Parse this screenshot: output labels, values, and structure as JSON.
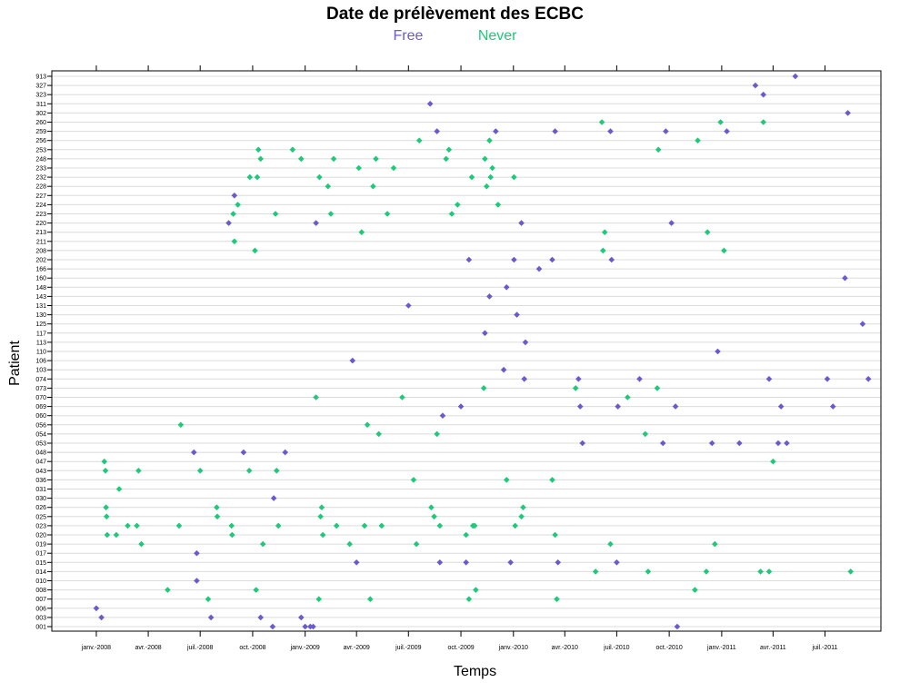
{
  "chart_data": {
    "type": "scatter",
    "title": "Date de prélèvement des ECBC",
    "xlabel": "Temps",
    "ylabel": "Patient",
    "legend_position": "top",
    "x_ticks": [
      "2008-01-01",
      "2008-04-01",
      "2008-07-01",
      "2008-10-01",
      "2009-01-01",
      "2009-04-01",
      "2009-07-01",
      "2009-10-01",
      "2010-01-01",
      "2010-04-01",
      "2010-07-01",
      "2010-10-01",
      "2011-01-01",
      "2011-04-01",
      "2011-07-01"
    ],
    "x_tick_labels": [
      "janv.-2008",
      "avr.-2008",
      "juil.-2008",
      "oct.-2008",
      "janv.-2009",
      "avr.-2009",
      "juil.-2009",
      "oct.-2009",
      "janv.-2010",
      "avr.-2010",
      "juil.-2010",
      "oct.-2010",
      "janv.-2011",
      "avr.-2011",
      "juil.-2011"
    ],
    "xlim": [
      "2007-10-15",
      "2011-10-07"
    ],
    "categories": [
      "001",
      "003",
      "006",
      "007",
      "008",
      "010",
      "014",
      "015",
      "017",
      "019",
      "020",
      "023",
      "025",
      "026",
      "030",
      "031",
      "036",
      "043",
      "047",
      "048",
      "053",
      "054",
      "056",
      "060",
      "069",
      "070",
      "073",
      "074",
      "103",
      "106",
      "110",
      "113",
      "117",
      "125",
      "130",
      "131",
      "143",
      "148",
      "160",
      "166",
      "202",
      "208",
      "211",
      "213",
      "220",
      "223",
      "224",
      "227",
      "228",
      "232",
      "233",
      "248",
      "253",
      "256",
      "259",
      "260",
      "302",
      "311",
      "323",
      "327",
      "913"
    ],
    "grid": true,
    "series": [
      {
        "name": "Free",
        "color": "#6a5acd",
        "points": [
          [
            "2008-01-01",
            "006"
          ],
          [
            "2008-01-10",
            "003"
          ],
          [
            "2008-06-20",
            "048"
          ],
          [
            "2008-06-25",
            "017"
          ],
          [
            "2008-06-25",
            "010"
          ],
          [
            "2008-07-20",
            "003"
          ],
          [
            "2008-08-20",
            "220"
          ],
          [
            "2008-08-30",
            "227"
          ],
          [
            "2008-09-15",
            "048"
          ],
          [
            "2008-10-15",
            "003"
          ],
          [
            "2008-11-05",
            "001"
          ],
          [
            "2008-11-07",
            "030"
          ],
          [
            "2008-11-27",
            "048"
          ],
          [
            "2008-12-25",
            "003"
          ],
          [
            "2009-01-01",
            "001"
          ],
          [
            "2009-01-10",
            "001"
          ],
          [
            "2009-01-15",
            "001"
          ],
          [
            "2009-01-20",
            "220"
          ],
          [
            "2009-03-25",
            "106"
          ],
          [
            "2009-04-01",
            "015"
          ],
          [
            "2009-07-01",
            "131"
          ],
          [
            "2009-08-08",
            "311"
          ],
          [
            "2009-08-20",
            "259"
          ],
          [
            "2009-08-25",
            "015"
          ],
          [
            "2009-08-30",
            "060"
          ],
          [
            "2009-10-01",
            "069"
          ],
          [
            "2009-10-10",
            "015"
          ],
          [
            "2009-10-15",
            "202"
          ],
          [
            "2009-11-12",
            "117"
          ],
          [
            "2009-11-20",
            "143"
          ],
          [
            "2009-12-01",
            "259"
          ],
          [
            "2009-12-15",
            "103"
          ],
          [
            "2009-12-20",
            "148"
          ],
          [
            "2009-12-27",
            "015"
          ],
          [
            "2010-01-02",
            "202"
          ],
          [
            "2010-01-07",
            "130"
          ],
          [
            "2010-01-15",
            "220"
          ],
          [
            "2010-01-20",
            "074"
          ],
          [
            "2010-01-22",
            "113"
          ],
          [
            "2010-02-15",
            "166"
          ],
          [
            "2010-03-10",
            "202"
          ],
          [
            "2010-03-15",
            "259"
          ],
          [
            "2010-03-20",
            "015"
          ],
          [
            "2010-04-25",
            "074"
          ],
          [
            "2010-04-28",
            "069"
          ],
          [
            "2010-05-02",
            "053"
          ],
          [
            "2010-06-20",
            "259"
          ],
          [
            "2010-06-22",
            "202"
          ],
          [
            "2010-07-01",
            "015"
          ],
          [
            "2010-07-03",
            "069"
          ],
          [
            "2010-08-10",
            "074"
          ],
          [
            "2010-09-20",
            "053"
          ],
          [
            "2010-09-25",
            "259"
          ],
          [
            "2010-10-05",
            "220"
          ],
          [
            "2010-10-12",
            "069"
          ],
          [
            "2010-10-15",
            "001"
          ],
          [
            "2010-12-15",
            "053"
          ],
          [
            "2010-12-25",
            "110"
          ],
          [
            "2011-01-10",
            "259"
          ],
          [
            "2011-02-01",
            "053"
          ],
          [
            "2011-03-01",
            "327"
          ],
          [
            "2011-03-15",
            "323"
          ],
          [
            "2011-03-25",
            "074"
          ],
          [
            "2011-04-10",
            "053"
          ],
          [
            "2011-04-15",
            "069"
          ],
          [
            "2011-04-25",
            "053"
          ],
          [
            "2011-05-10",
            "913"
          ],
          [
            "2011-07-05",
            "074"
          ],
          [
            "2011-07-15",
            "069"
          ],
          [
            "2011-08-05",
            "160"
          ],
          [
            "2011-08-10",
            "302"
          ],
          [
            "2011-09-05",
            "125"
          ],
          [
            "2011-09-15",
            "074"
          ]
        ]
      },
      {
        "name": "Never",
        "color": "#1fc97a",
        "points": [
          [
            "2008-01-15",
            "047"
          ],
          [
            "2008-01-17",
            "043"
          ],
          [
            "2008-01-18",
            "026"
          ],
          [
            "2008-01-19",
            "025"
          ],
          [
            "2008-01-20",
            "020"
          ],
          [
            "2008-02-05",
            "020"
          ],
          [
            "2008-02-10",
            "031"
          ],
          [
            "2008-02-25",
            "023"
          ],
          [
            "2008-03-12",
            "023"
          ],
          [
            "2008-03-15",
            "043"
          ],
          [
            "2008-03-20",
            "019"
          ],
          [
            "2008-05-05",
            "008"
          ],
          [
            "2008-05-25",
            "023"
          ],
          [
            "2008-05-28",
            "056"
          ],
          [
            "2008-07-01",
            "043"
          ],
          [
            "2008-07-15",
            "007"
          ],
          [
            "2008-07-30",
            "026"
          ],
          [
            "2008-07-31",
            "025"
          ],
          [
            "2008-08-25",
            "023"
          ],
          [
            "2008-08-26",
            "020"
          ],
          [
            "2008-08-28",
            "223"
          ],
          [
            "2008-08-30",
            "211"
          ],
          [
            "2008-09-05",
            "224"
          ],
          [
            "2008-09-25",
            "043"
          ],
          [
            "2008-09-26",
            "232"
          ],
          [
            "2008-10-05",
            "208"
          ],
          [
            "2008-10-07",
            "008"
          ],
          [
            "2008-10-09",
            "232"
          ],
          [
            "2008-10-11",
            "253"
          ],
          [
            "2008-10-15",
            "248"
          ],
          [
            "2008-10-19",
            "019"
          ],
          [
            "2008-11-10",
            "223"
          ],
          [
            "2008-11-12",
            "043"
          ],
          [
            "2008-11-15",
            "023"
          ],
          [
            "2008-12-10",
            "253"
          ],
          [
            "2008-12-25",
            "248"
          ],
          [
            "2009-01-20",
            "070"
          ],
          [
            "2009-01-25",
            "007"
          ],
          [
            "2009-01-26",
            "232"
          ],
          [
            "2009-01-28",
            "025"
          ],
          [
            "2009-01-30",
            "026"
          ],
          [
            "2009-02-01",
            "020"
          ],
          [
            "2009-02-10",
            "228"
          ],
          [
            "2009-02-15",
            "223"
          ],
          [
            "2009-02-20",
            "248"
          ],
          [
            "2009-02-25",
            "023"
          ],
          [
            "2009-03-20",
            "019"
          ],
          [
            "2009-04-05",
            "233"
          ],
          [
            "2009-04-10",
            "213"
          ],
          [
            "2009-04-15",
            "023"
          ],
          [
            "2009-04-20",
            "056"
          ],
          [
            "2009-04-25",
            "007"
          ],
          [
            "2009-04-30",
            "228"
          ],
          [
            "2009-05-05",
            "248"
          ],
          [
            "2009-05-10",
            "054"
          ],
          [
            "2009-05-15",
            "023"
          ],
          [
            "2009-05-25",
            "223"
          ],
          [
            "2009-06-05",
            "233"
          ],
          [
            "2009-06-20",
            "070"
          ],
          [
            "2009-07-10",
            "036"
          ],
          [
            "2009-07-15",
            "019"
          ],
          [
            "2009-07-20",
            "256"
          ],
          [
            "2009-08-10",
            "026"
          ],
          [
            "2009-08-15",
            "025"
          ],
          [
            "2009-08-20",
            "054"
          ],
          [
            "2009-08-25",
            "023"
          ],
          [
            "2009-09-05",
            "248"
          ],
          [
            "2009-09-10",
            "253"
          ],
          [
            "2009-09-15",
            "223"
          ],
          [
            "2009-09-25",
            "224"
          ],
          [
            "2009-10-10",
            "020"
          ],
          [
            "2009-10-15",
            "007"
          ],
          [
            "2009-10-20",
            "232"
          ],
          [
            "2009-10-22",
            "023"
          ],
          [
            "2009-10-25",
            "023"
          ],
          [
            "2009-10-27",
            "008"
          ],
          [
            "2009-11-10",
            "073"
          ],
          [
            "2009-11-12",
            "248"
          ],
          [
            "2009-11-15",
            "228"
          ],
          [
            "2009-11-20",
            "256"
          ],
          [
            "2009-11-22",
            "232"
          ],
          [
            "2009-11-25",
            "233"
          ],
          [
            "2009-12-05",
            "224"
          ],
          [
            "2009-12-20",
            "036"
          ],
          [
            "2010-01-02",
            "232"
          ],
          [
            "2010-01-04",
            "023"
          ],
          [
            "2010-01-15",
            "025"
          ],
          [
            "2010-01-18",
            "026"
          ],
          [
            "2010-03-10",
            "036"
          ],
          [
            "2010-03-15",
            "020"
          ],
          [
            "2010-03-18",
            "007"
          ],
          [
            "2010-04-20",
            "073"
          ],
          [
            "2010-05-25",
            "014"
          ],
          [
            "2010-06-05",
            "260"
          ],
          [
            "2010-06-07",
            "208"
          ],
          [
            "2010-06-10",
            "213"
          ],
          [
            "2010-06-20",
            "019"
          ],
          [
            "2010-07-20",
            "070"
          ],
          [
            "2010-08-20",
            "054"
          ],
          [
            "2010-08-25",
            "014"
          ],
          [
            "2010-09-10",
            "073"
          ],
          [
            "2010-09-12",
            "253"
          ],
          [
            "2010-11-15",
            "008"
          ],
          [
            "2010-11-20",
            "256"
          ],
          [
            "2010-12-05",
            "014"
          ],
          [
            "2010-12-07",
            "213"
          ],
          [
            "2010-12-20",
            "019"
          ],
          [
            "2010-12-30",
            "260"
          ],
          [
            "2011-01-05",
            "208"
          ],
          [
            "2011-03-10",
            "014"
          ],
          [
            "2011-03-15",
            "260"
          ],
          [
            "2011-03-25",
            "014"
          ],
          [
            "2011-04-01",
            "047"
          ],
          [
            "2011-08-15",
            "014"
          ]
        ]
      }
    ]
  }
}
